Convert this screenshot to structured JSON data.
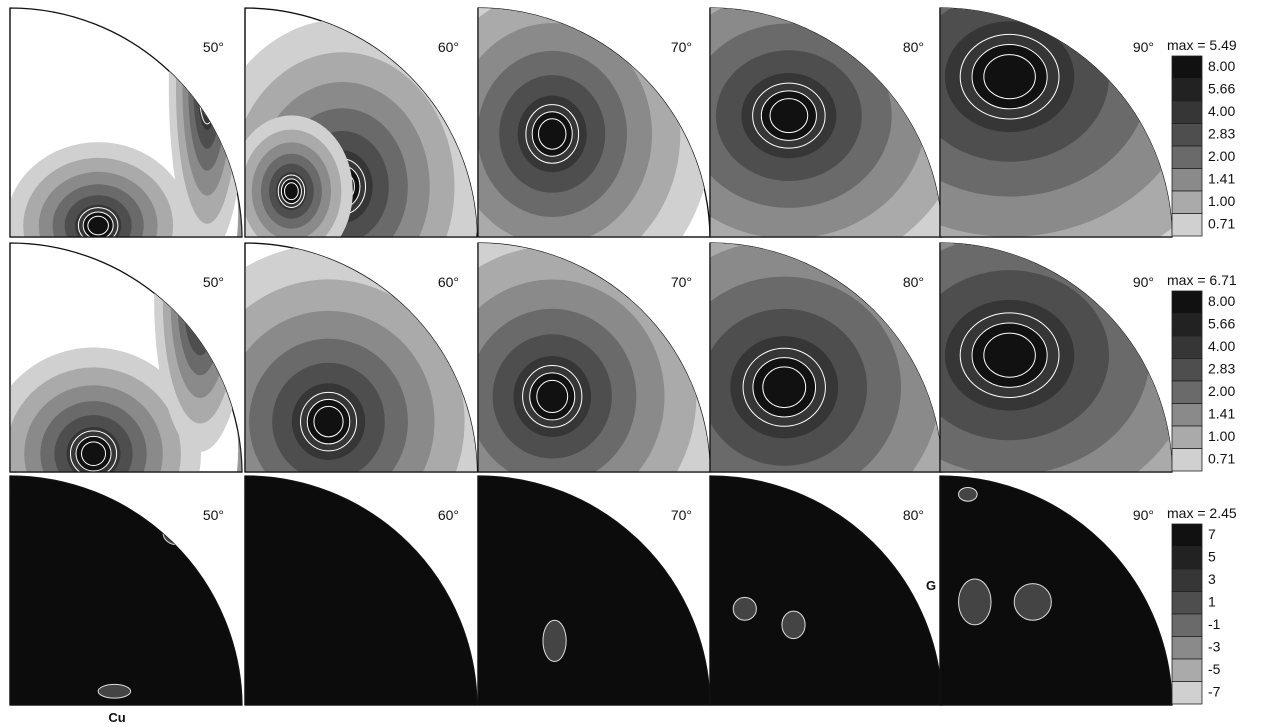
{
  "rows": [
    {
      "panels": [
        "50°",
        "60°",
        "70°",
        "80°",
        "90°"
      ],
      "max_label": "max = 5.49",
      "legend": [
        "8.00",
        "5.66",
        "4.00",
        "2.83",
        "2.00",
        "1.41",
        "1.00",
        "0.71"
      ],
      "style": "positive"
    },
    {
      "panels": [
        "50°",
        "60°",
        "70°",
        "80°",
        "90°"
      ],
      "max_label": "max = 6.71",
      "legend": [
        "8.00",
        "5.66",
        "4.00",
        "2.83",
        "2.00",
        "1.41",
        "1.00",
        "0.71"
      ],
      "style": "positive"
    },
    {
      "panels": [
        "50°",
        "60°",
        "70°",
        "80°",
        "90°"
      ],
      "max_label": "max = 2.45",
      "legend": [
        "7",
        "5",
        "3",
        "1",
        "-1",
        "-3",
        "-5",
        "-7"
      ],
      "style": "difference"
    }
  ],
  "annotations": {
    "cu_label": "Cu",
    "g_label": "G"
  },
  "colors": {
    "level_shades": [
      "#111111",
      "#222222",
      "#363636",
      "#4e4e4e",
      "#6a6a6a",
      "#8a8a8a",
      "#aaaaaa",
      "#d0d0d0"
    ],
    "difference_fill": "#0c0c0c"
  }
}
